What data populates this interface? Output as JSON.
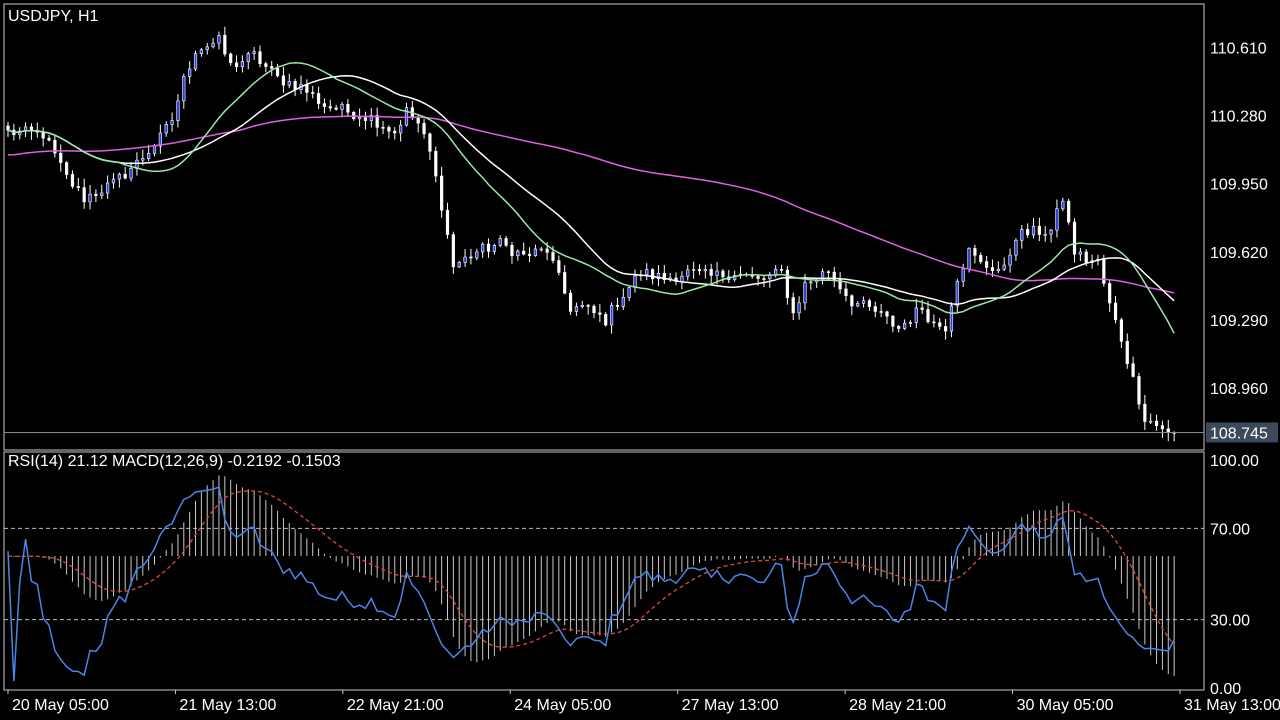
{
  "symbol_title": "USDJPY, H1",
  "indicator_title": "RSI(14) 21.12 MACD(12,26,9) -0.2192 -0.1503",
  "chart_data": [
    {
      "type": "candlestick",
      "title": "USDJPY, H1",
      "yticks": [
        "110.610",
        "110.280",
        "109.950",
        "109.620",
        "109.290",
        "108.960"
      ],
      "ytick_values": [
        110.61,
        110.28,
        109.95,
        109.62,
        109.29,
        108.96
      ],
      "ylim": [
        108.66,
        110.82
      ],
      "current_price": "108.745",
      "xticks": [
        "20 May 05:00",
        "21 May 13:00",
        "22 May 21:00",
        "24 May 05:00",
        "27 May 13:00",
        "28 May 21:00",
        "30 May 05:00",
        "31 May 13:00"
      ],
      "bar_count": 200,
      "close_path": [
        [
          0,
          110.2
        ],
        [
          6,
          110.19
        ],
        [
          10,
          109.98
        ],
        [
          13,
          109.88
        ],
        [
          18,
          109.95
        ],
        [
          22,
          110.05
        ],
        [
          26,
          110.17
        ],
        [
          28,
          110.26
        ],
        [
          30,
          110.45
        ],
        [
          32,
          110.6
        ],
        [
          36,
          110.64
        ],
        [
          38,
          110.52
        ],
        [
          42,
          110.57
        ],
        [
          46,
          110.46
        ],
        [
          50,
          110.42
        ],
        [
          54,
          110.33
        ],
        [
          58,
          110.3
        ],
        [
          62,
          110.27
        ],
        [
          66,
          110.2
        ],
        [
          68,
          110.3
        ],
        [
          70,
          110.24
        ],
        [
          72,
          110.1
        ],
        [
          74,
          109.85
        ],
        [
          76,
          109.55
        ],
        [
          80,
          109.62
        ],
        [
          84,
          109.66
        ],
        [
          88,
          109.6
        ],
        [
          92,
          109.63
        ],
        [
          96,
          109.35
        ],
        [
          98,
          109.35
        ],
        [
          102,
          109.29
        ],
        [
          104,
          109.38
        ],
        [
          108,
          109.52
        ],
        [
          112,
          109.49
        ],
        [
          116,
          109.52
        ],
        [
          120,
          109.5
        ],
        [
          124,
          109.52
        ],
        [
          128,
          109.48
        ],
        [
          132,
          109.52
        ],
        [
          134,
          109.32
        ],
        [
          136,
          109.46
        ],
        [
          140,
          109.53
        ],
        [
          144,
          109.38
        ],
        [
          148,
          109.33
        ],
        [
          152,
          109.25
        ],
        [
          156,
          109.35
        ],
        [
          158,
          109.27
        ],
        [
          160,
          109.26
        ],
        [
          162,
          109.5
        ],
        [
          164,
          109.62
        ],
        [
          166,
          109.56
        ],
        [
          170,
          109.53
        ],
        [
          172,
          109.7
        ],
        [
          176,
          109.72
        ],
        [
          178,
          109.72
        ],
        [
          180,
          109.88
        ],
        [
          182,
          109.62
        ],
        [
          184,
          109.58
        ],
        [
          186,
          109.57
        ],
        [
          188,
          109.36
        ],
        [
          190,
          109.2
        ],
        [
          192,
          109.0
        ],
        [
          194,
          108.82
        ],
        [
          196,
          108.78
        ],
        [
          198,
          108.745
        ]
      ]
    },
    {
      "type": "line",
      "title": "RSI(14) 21.12 MACD(12,26,9) -0.2192 -0.1503",
      "yticks": [
        "100.00",
        "70.00",
        "30.00",
        "0.00"
      ],
      "ytick_values": [
        100,
        70,
        30,
        0
      ],
      "ylim": [
        0,
        100
      ],
      "levels": [
        70,
        30
      ],
      "series": [
        {
          "name": "RSI(14)",
          "last_value": 21.12
        },
        {
          "name": "MACD(12,26,9)",
          "main": -0.2192,
          "signal": -0.1503
        }
      ]
    }
  ],
  "colors": {
    "background": "#000000",
    "frame": "#c8c8c8",
    "bull_body": "#2a3fe0",
    "bear_body": "#ffffff",
    "wick": "#ffffff",
    "ma_fast": "#9be8a8",
    "ma_mid": "#ffffff",
    "ma_slow": "#e060e0",
    "rsi": "#4a86e8",
    "macd_signal": "#e04a3a",
    "macd_hist": "#c8c8c8",
    "price_tag": "#3a4a5a"
  }
}
